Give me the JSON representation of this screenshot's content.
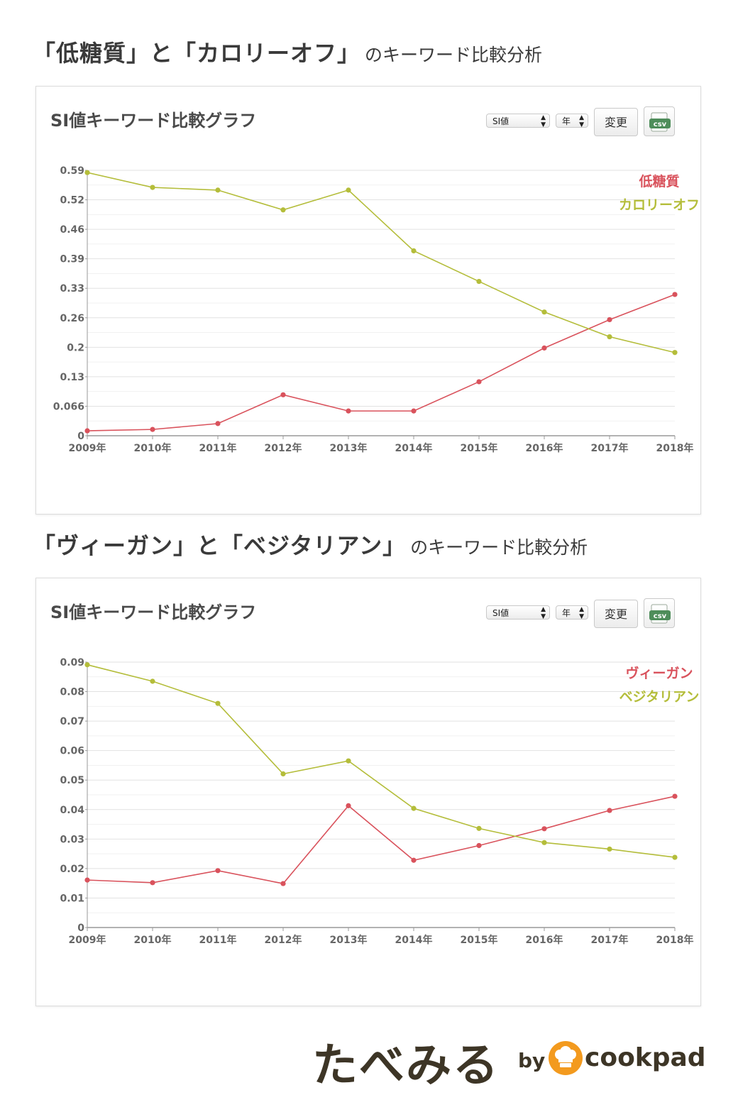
{
  "sections": [
    {
      "heading_main": "「低糖質」と「カロリーオフ」",
      "heading_sub": "のキーワード比較分析"
    },
    {
      "heading_main": "「ヴィーガン」と「ベジタリアン」",
      "heading_sub": "のキーワード比較分析"
    }
  ],
  "panel_title": "SI値キーワード比較グラフ",
  "controls": {
    "metric_select": "SI値",
    "period_select": "年",
    "change_button": "変更",
    "csv_button": "csv"
  },
  "colors": {
    "series_red": "#d9525c",
    "series_olive": "#b4bd3a",
    "grid": "#e6e6e6",
    "axis": "#999999"
  },
  "footer": {
    "brand": "たべみる",
    "by": "by",
    "partner": "cookpad"
  },
  "chart_data": [
    {
      "type": "line",
      "title": "SI値キーワード比較グラフ",
      "categories": [
        "2009年",
        "2010年",
        "2011年",
        "2012年",
        "2013年",
        "2014年",
        "2015年",
        "2016年",
        "2017年",
        "2018年"
      ],
      "y_ticks": [
        "0",
        "0.066",
        "0.13",
        "0.2",
        "0.26",
        "0.33",
        "0.39",
        "0.46",
        "0.52",
        "0.59"
      ],
      "ylim": [
        0,
        0.59
      ],
      "grid": true,
      "legend_position": "top-right",
      "series": [
        {
          "name": "低糖質",
          "color": "#d9525c",
          "values": [
            0.011,
            0.014,
            0.027,
            0.091,
            0.055,
            0.055,
            0.12,
            0.195,
            0.258,
            0.314
          ]
        },
        {
          "name": "カロリーオフ",
          "color": "#b4bd3a",
          "values": [
            0.585,
            0.552,
            0.546,
            0.502,
            0.546,
            0.411,
            0.343,
            0.275,
            0.22,
            0.185
          ]
        }
      ]
    },
    {
      "type": "line",
      "title": "SI値キーワード比較グラフ",
      "categories": [
        "2009年",
        "2010年",
        "2011年",
        "2012年",
        "2013年",
        "2014年",
        "2015年",
        "2016年",
        "2017年",
        "2018年"
      ],
      "y_ticks": [
        "0",
        "0.01",
        "0.02",
        "0.03",
        "0.04",
        "0.05",
        "0.06",
        "0.07",
        "0.08",
        "0.09"
      ],
      "ylim": [
        0,
        0.09
      ],
      "grid": true,
      "legend_position": "top-right",
      "series": [
        {
          "name": "ヴィーガン",
          "color": "#d9525c",
          "values": [
            0.0161,
            0.0152,
            0.0193,
            0.0149,
            0.0413,
            0.0228,
            0.0278,
            0.0335,
            0.0397,
            0.0445
          ]
        },
        {
          "name": "ベジタリアン",
          "color": "#b4bd3a",
          "values": [
            0.0891,
            0.0835,
            0.076,
            0.0521,
            0.0565,
            0.0404,
            0.0336,
            0.0288,
            0.0266,
            0.0238
          ]
        }
      ]
    }
  ]
}
